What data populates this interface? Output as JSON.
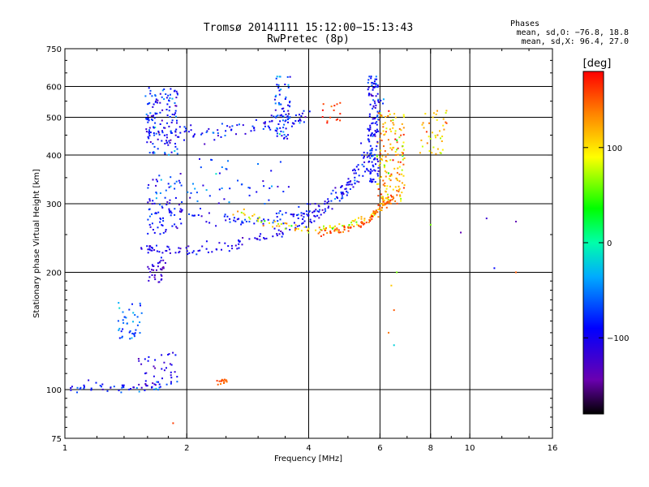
{
  "header": {
    "title_line1": "Tromsø 20141111 15:12:00−15:13:43",
    "title_line2": "RwPretec (8p)",
    "stats_title": "Phases",
    "stats_line1": "mean, sd,O:  −76.8, 18.8",
    "stats_line2": "mean, sd,X:  96.4, 27.0"
  },
  "colorbar": {
    "label": "[deg]",
    "range": [
      -180,
      180
    ],
    "tick_values": [
      100,
      0,
      -100
    ],
    "tick_labels": [
      "100",
      "0",
      "−100"
    ]
  },
  "chart_data": {
    "type": "scatter",
    "title": "Tromsø 20141111 15:12:00−15:13:43",
    "subtitle": "RwPretec (8p)",
    "xlabel": "Frequency [MHz]",
    "ylabel": "Stationary phase Virtual Height [km]",
    "xscale": "log",
    "yscale": "log",
    "xlim": [
      1,
      16
    ],
    "ylim": [
      75,
      750
    ],
    "x_ticks": [
      1,
      2,
      4,
      6,
      8,
      10,
      16
    ],
    "x_tick_labels": [
      "1",
      "2",
      "4",
      "6",
      "8",
      "10",
      "16"
    ],
    "y_ticks": [
      75,
      100,
      200,
      300,
      400,
      500,
      600,
      750
    ],
    "y_tick_labels": [
      "75",
      "100",
      "200",
      "300",
      "400",
      "500",
      "600",
      "750"
    ],
    "x_gridlines": [
      2,
      4,
      6,
      8,
      10
    ],
    "y_gridlines": [
      100,
      200,
      300,
      400,
      500,
      600
    ],
    "color_variable": "phase (deg)",
    "series": [
      {
        "name": "O-mode F-region trace",
        "mode": "curve",
        "x": [
          1.55,
          1.7,
          2.0,
          2.5,
          3.0,
          3.5,
          4.0,
          4.5,
          5.0,
          5.5,
          5.8
        ],
        "y": [
          230,
          228,
          227,
          232,
          243,
          258,
          275,
          300,
          335,
          390,
          470
        ],
        "phase": -100,
        "phase_sd": 15,
        "spread_x": 0.015,
        "spread_y": 0.018,
        "density": 130
      },
      {
        "name": "O-mode trace (upper branch)",
        "mode": "curve",
        "x": [
          1.8,
          2.2,
          2.7,
          3.2,
          3.7,
          4.2,
          4.8,
          5.3,
          5.8,
          6.0
        ],
        "y": [
          290,
          275,
          270,
          272,
          280,
          292,
          312,
          345,
          410,
          560
        ],
        "phase": -85,
        "phase_sd": 18,
        "spread_x": 0.015,
        "spread_y": 0.02,
        "density": 100
      },
      {
        "name": "X-mode F-region trace",
        "mode": "curve",
        "x": [
          2.6,
          3.0,
          3.5,
          4.0,
          4.5,
          5.0,
          5.5,
          6.0,
          6.3
        ],
        "y": [
          285,
          272,
          262,
          256,
          258,
          264,
          275,
          292,
          320
        ],
        "phase": 95,
        "phase_sd": 30,
        "spread_x": 0.012,
        "spread_y": 0.012,
        "density": 70
      },
      {
        "name": "X-mode high-frequency band",
        "mode": "blob",
        "x_range": [
          5.9,
          6.9
        ],
        "y_range": [
          300,
          520
        ],
        "phase": 120,
        "phase_sd": 35,
        "count": 160
      },
      {
        "name": "X-mode lower edge",
        "mode": "curve",
        "x": [
          4.2,
          4.8,
          5.4,
          5.8,
          6.2,
          6.6
        ],
        "y": [
          253,
          256,
          265,
          280,
          300,
          318
        ],
        "phase": 150,
        "phase_sd": 12,
        "spread_x": 0.01,
        "spread_y": 0.01,
        "density": 60
      },
      {
        "name": "Multi-hop 450 km band",
        "mode": "curve",
        "x": [
          1.6,
          1.8,
          2.0,
          2.3,
          2.6,
          3.0,
          3.3,
          3.7,
          4.0
        ],
        "y": [
          450,
          452,
          455,
          460,
          465,
          472,
          480,
          492,
          510
        ],
        "phase": -90,
        "phase_sd": 22,
        "spread_x": 0.02,
        "spread_y": 0.025,
        "density": 70
      },
      {
        "name": "Blob 1.6–1.9 MHz, 400–600 km",
        "mode": "blob",
        "x_range": [
          1.58,
          1.9
        ],
        "y_range": [
          400,
          600
        ],
        "phase": -85,
        "phase_sd": 25,
        "count": 130
      },
      {
        "name": "Vertical streak 3.3–3.6 MHz",
        "mode": "blob",
        "x_range": [
          3.3,
          3.6
        ],
        "y_range": [
          440,
          640
        ],
        "phase": -80,
        "phase_sd": 25,
        "count": 70
      },
      {
        "name": "Vertical streak 5.7–5.9 MHz",
        "mode": "blob",
        "x_range": [
          5.6,
          5.95
        ],
        "y_range": [
          340,
          640
        ],
        "phase": -95,
        "phase_sd": 20,
        "count": 110
      },
      {
        "name": "Cluster 1.6–1.9 MHz, 250–350 km",
        "mode": "blob",
        "x_range": [
          1.6,
          1.95
        ],
        "y_range": [
          250,
          360
        ],
        "phase": -85,
        "phase_sd": 25,
        "count": 80
      },
      {
        "name": "Low cluster 1.6–1.75 MHz, 190–215 km",
        "mode": "blob",
        "x_range": [
          1.6,
          1.78
        ],
        "y_range": [
          188,
          215
        ],
        "phase": -125,
        "phase_sd": 15,
        "count": 35
      },
      {
        "name": "Scatter 2–3 MHz, 320–380 km",
        "mode": "blob",
        "x_range": [
          2.0,
          3.8
        ],
        "y_range": [
          300,
          400
        ],
        "phase": -75,
        "phase_sd": 25,
        "count": 45
      },
      {
        "name": "E-region 1.4–1.55 MHz, 135–165 km",
        "mode": "blob",
        "x_range": [
          1.35,
          1.55
        ],
        "y_range": [
          135,
          168
        ],
        "phase": -60,
        "phase_sd": 18,
        "count": 40
      },
      {
        "name": "E-region 1.0–1.9 MHz, 100 km",
        "mode": "curve",
        "x": [
          1.0,
          1.2,
          1.4,
          1.6,
          1.85
        ],
        "y": [
          101,
          102,
          101,
          102,
          103
        ],
        "phase": -90,
        "phase_sd": 25,
        "spread_x": 0.02,
        "spread_y": 0.015,
        "density": 40
      },
      {
        "name": "Es 1.5–1.9 MHz, 100–125 km",
        "mode": "blob",
        "x_range": [
          1.5,
          1.92
        ],
        "y_range": [
          100,
          125
        ],
        "phase": -105,
        "phase_sd": 18,
        "count": 35
      },
      {
        "name": "Patch 2.4 MHz, 105 km",
        "mode": "blob",
        "x_range": [
          2.35,
          2.55
        ],
        "y_range": [
          103,
          107
        ],
        "phase": 150,
        "phase_sd": 8,
        "count": 15
      },
      {
        "name": "High-frequency streaks 7.5–9 MHz",
        "mode": "blob",
        "x_range": [
          7.5,
          9.0
        ],
        "y_range": [
          400,
          520
        ],
        "phase": 110,
        "phase_sd": 35,
        "count": 40
      },
      {
        "name": "Orange cluster 4.3–4.7 MHz, 500 km",
        "mode": "blob",
        "x_range": [
          4.3,
          4.8
        ],
        "y_range": [
          470,
          560
        ],
        "phase": 160,
        "phase_sd": 15,
        "count": 15
      },
      {
        "name": "Isolated points",
        "mode": "points",
        "x": [
          6.5,
          6.5,
          6.3,
          8.0,
          9.5,
          11.0,
          13.0,
          11.5,
          13.0,
          1.85,
          6.6,
          6.4
        ],
        "y": [
          160,
          130,
          140,
          265,
          253,
          275,
          270,
          205,
          200,
          82,
          200,
          185
        ],
        "phase": [
          150,
          -20,
          140,
          60,
          -140,
          -120,
          -140,
          -90,
          150,
          160,
          60,
          110
        ]
      }
    ]
  }
}
